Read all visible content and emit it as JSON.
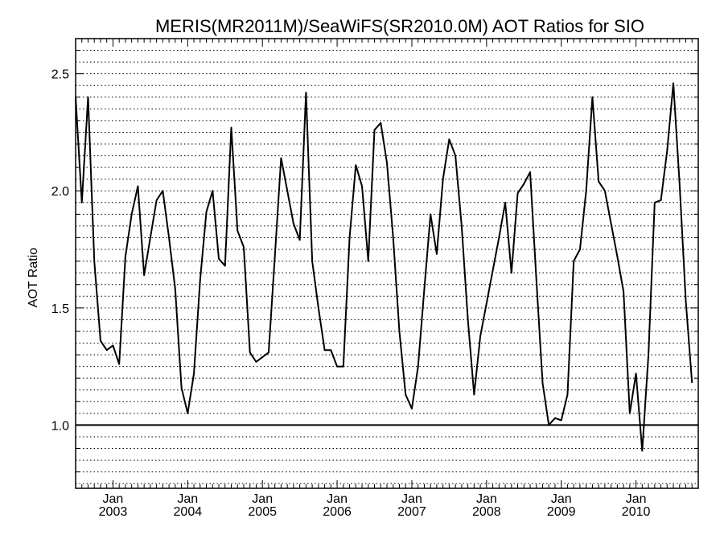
{
  "chart_data": {
    "type": "line",
    "title": "MERIS(MR2011M)/SeaWiFS(SR2010.0M)  AOT Ratios for SIO",
    "xlabel": "",
    "ylabel": "AOT Ratio",
    "xlim": [
      "2002-07",
      "2010-11"
    ],
    "ylim": [
      0.73,
      2.65
    ],
    "x_tick_labels": [
      {
        "month": "Jan",
        "year": "2003",
        "date": "2003-01"
      },
      {
        "month": "Jan",
        "year": "2004",
        "date": "2004-01"
      },
      {
        "month": "Jan",
        "year": "2005",
        "date": "2005-01"
      },
      {
        "month": "Jan",
        "year": "2006",
        "date": "2006-01"
      },
      {
        "month": "Jan",
        "year": "2007",
        "date": "2007-01"
      },
      {
        "month": "Jan",
        "year": "2008",
        "date": "2008-01"
      },
      {
        "month": "Jan",
        "year": "2009",
        "date": "2009-01"
      },
      {
        "month": "Jan",
        "year": "2010",
        "date": "2010-01"
      }
    ],
    "y_ticks": [
      {
        "value": 1.0,
        "label": "1.0"
      },
      {
        "value": 1.5,
        "label": "1.5"
      },
      {
        "value": 2.0,
        "label": "2.0"
      },
      {
        "value": 2.5,
        "label": "2.5"
      }
    ],
    "grid": {
      "horizontal": true,
      "style": "dotted",
      "step": 0.05
    },
    "reference_line": {
      "y": 1.0
    },
    "series": [
      {
        "color": "#000000",
        "points": [
          {
            "x": "2002-07",
            "y": 2.4
          },
          {
            "x": "2002-08",
            "y": 1.95
          },
          {
            "x": "2002-09",
            "y": 2.4
          },
          {
            "x": "2002-10",
            "y": 1.7
          },
          {
            "x": "2002-11",
            "y": 1.36
          },
          {
            "x": "2002-12",
            "y": 1.32
          },
          {
            "x": "2003-01",
            "y": 1.34
          },
          {
            "x": "2003-02",
            "y": 1.26
          },
          {
            "x": "2003-03",
            "y": 1.72
          },
          {
            "x": "2003-04",
            "y": 1.9
          },
          {
            "x": "2003-05",
            "y": 2.02
          },
          {
            "x": "2003-06",
            "y": 1.64
          },
          {
            "x": "2003-07",
            "y": 1.8
          },
          {
            "x": "2003-08",
            "y": 1.96
          },
          {
            "x": "2003-09",
            "y": 2.0
          },
          {
            "x": "2003-10",
            "y": 1.8
          },
          {
            "x": "2003-11",
            "y": 1.58
          },
          {
            "x": "2003-12",
            "y": 1.16
          },
          {
            "x": "2004-01",
            "y": 1.05
          },
          {
            "x": "2004-02",
            "y": 1.22
          },
          {
            "x": "2004-03",
            "y": 1.62
          },
          {
            "x": "2004-04",
            "y": 1.91
          },
          {
            "x": "2004-05",
            "y": 2.0
          },
          {
            "x": "2004-06",
            "y": 1.71
          },
          {
            "x": "2004-07",
            "y": 1.68
          },
          {
            "x": "2004-08",
            "y": 2.27
          },
          {
            "x": "2004-09",
            "y": 1.83
          },
          {
            "x": "2004-10",
            "y": 1.76
          },
          {
            "x": "2004-11",
            "y": 1.31
          },
          {
            "x": "2004-12",
            "y": 1.27
          },
          {
            "x": "2005-01",
            "y": 1.29
          },
          {
            "x": "2005-02",
            "y": 1.31
          },
          {
            "x": "2005-03",
            "y": 1.72
          },
          {
            "x": "2005-04",
            "y": 2.14
          },
          {
            "x": "2005-05",
            "y": 2.0
          },
          {
            "x": "2005-06",
            "y": 1.86
          },
          {
            "x": "2005-07",
            "y": 1.79
          },
          {
            "x": "2005-08",
            "y": 2.42
          },
          {
            "x": "2005-09",
            "y": 1.7
          },
          {
            "x": "2005-10",
            "y": 1.5
          },
          {
            "x": "2005-11",
            "y": 1.32
          },
          {
            "x": "2005-12",
            "y": 1.32
          },
          {
            "x": "2006-01",
            "y": 1.25
          },
          {
            "x": "2006-02",
            "y": 1.25
          },
          {
            "x": "2006-03",
            "y": 1.8
          },
          {
            "x": "2006-04",
            "y": 2.11
          },
          {
            "x": "2006-05",
            "y": 2.02
          },
          {
            "x": "2006-06",
            "y": 1.7
          },
          {
            "x": "2006-07",
            "y": 2.26
          },
          {
            "x": "2006-08",
            "y": 2.29
          },
          {
            "x": "2006-09",
            "y": 2.12
          },
          {
            "x": "2006-10",
            "y": 1.8
          },
          {
            "x": "2006-11",
            "y": 1.4
          },
          {
            "x": "2006-12",
            "y": 1.13
          },
          {
            "x": "2007-01",
            "y": 1.07
          },
          {
            "x": "2007-02",
            "y": 1.25
          },
          {
            "x": "2007-03",
            "y": 1.58
          },
          {
            "x": "2007-04",
            "y": 1.9
          },
          {
            "x": "2007-05",
            "y": 1.73
          },
          {
            "x": "2007-06",
            "y": 2.05
          },
          {
            "x": "2007-07",
            "y": 2.22
          },
          {
            "x": "2007-08",
            "y": 2.15
          },
          {
            "x": "2007-09",
            "y": 1.85
          },
          {
            "x": "2007-10",
            "y": 1.45
          },
          {
            "x": "2007-11",
            "y": 1.13
          },
          {
            "x": "2007-12",
            "y": 1.38
          },
          {
            "x": "2008-01",
            "y": 1.52
          },
          {
            "x": "2008-02",
            "y": 1.66
          },
          {
            "x": "2008-03",
            "y": 1.8
          },
          {
            "x": "2008-04",
            "y": 1.95
          },
          {
            "x": "2008-05",
            "y": 1.65
          },
          {
            "x": "2008-06",
            "y": 1.99
          },
          {
            "x": "2008-07",
            "y": 2.03
          },
          {
            "x": "2008-08",
            "y": 2.08
          },
          {
            "x": "2008-09",
            "y": 1.62
          },
          {
            "x": "2008-10",
            "y": 1.18
          },
          {
            "x": "2008-11",
            "y": 1.0
          },
          {
            "x": "2008-12",
            "y": 1.03
          },
          {
            "x": "2009-01",
            "y": 1.02
          },
          {
            "x": "2009-02",
            "y": 1.13
          },
          {
            "x": "2009-03",
            "y": 1.7
          },
          {
            "x": "2009-04",
            "y": 1.75
          },
          {
            "x": "2009-05",
            "y": 2.0
          },
          {
            "x": "2009-06",
            "y": 2.4
          },
          {
            "x": "2009-07",
            "y": 2.04
          },
          {
            "x": "2009-08",
            "y": 2.0
          },
          {
            "x": "2009-09",
            "y": 1.86
          },
          {
            "x": "2009-10",
            "y": 1.72
          },
          {
            "x": "2009-11",
            "y": 1.57
          },
          {
            "x": "2009-12",
            "y": 1.05
          },
          {
            "x": "2010-01",
            "y": 1.22
          },
          {
            "x": "2010-02",
            "y": 0.89
          },
          {
            "x": "2010-03",
            "y": 1.3
          },
          {
            "x": "2010-04",
            "y": 1.95
          },
          {
            "x": "2010-05",
            "y": 1.96
          },
          {
            "x": "2010-06",
            "y": 2.17
          },
          {
            "x": "2010-07",
            "y": 2.46
          },
          {
            "x": "2010-08",
            "y": 2.03
          },
          {
            "x": "2010-09",
            "y": 1.53
          },
          {
            "x": "2010-10",
            "y": 1.18
          }
        ]
      }
    ]
  }
}
